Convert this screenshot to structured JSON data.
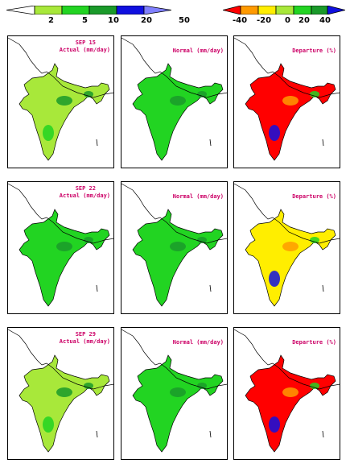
{
  "legends": {
    "rainfall": {
      "ticks": [
        "2",
        "5",
        "10",
        "20",
        "50"
      ],
      "colors": [
        "#ffffff",
        "#a8e83a",
        "#22d422",
        "#1a9a2a",
        "#1010e0",
        "#8080ff"
      ]
    },
    "departure": {
      "ticks": [
        "-40",
        "-20",
        "0",
        "20",
        "40"
      ],
      "colors": [
        "#ff0000",
        "#ff9a00",
        "#ffee00",
        "#a8e83a",
        "#22d422",
        "#1a9a2a",
        "#1010e0"
      ]
    }
  },
  "rows": [
    {
      "date": "SEP 15",
      "panels": [
        {
          "label": "Actual (mm/day)",
          "fill": "#a8e83a"
        },
        {
          "label": "Normal (mm/day)",
          "fill": "#22d422"
        },
        {
          "label": "Departure (%)",
          "fill": "#ff0000"
        }
      ]
    },
    {
      "date": "SEP 22",
      "panels": [
        {
          "label": "Actual (mm/day)",
          "fill": "#22d422"
        },
        {
          "label": "Normal (mm/day)",
          "fill": "#22d422"
        },
        {
          "label": "Departure (%)",
          "fill": "#ffee00"
        }
      ]
    },
    {
      "date": "SEP 29",
      "panels": [
        {
          "label": "Actual (mm/day)",
          "fill": "#a8e83a"
        },
        {
          "label": "Normal (mm/day)",
          "fill": "#22d422"
        },
        {
          "label": "Departure (%)",
          "fill": "#ff0000"
        }
      ]
    }
  ]
}
